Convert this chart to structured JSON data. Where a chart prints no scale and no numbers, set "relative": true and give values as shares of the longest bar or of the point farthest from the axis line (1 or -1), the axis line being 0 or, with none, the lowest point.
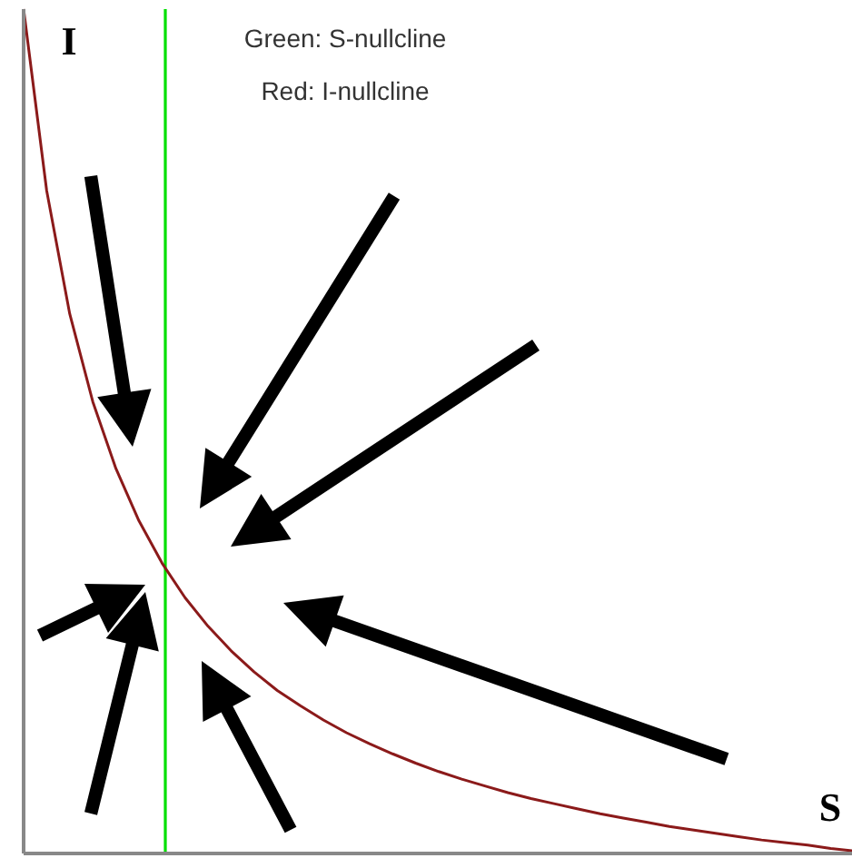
{
  "chart_data": {
    "type": "line",
    "relative": true,
    "xlabel": "S",
    "ylabel": "I",
    "annotations": [
      "Green: S-nullcline",
      "Red: I-nullcline"
    ],
    "categories": [
      null,
      null,
      null,
      null,
      null,
      null,
      null,
      null,
      null,
      null,
      null,
      null,
      null,
      null,
      null,
      null,
      null,
      null,
      null,
      null,
      null,
      null,
      null,
      null,
      null,
      null,
      null,
      null,
      null,
      null,
      null,
      null,
      null,
      null,
      null,
      null,
      null
    ],
    "line_style": "solid",
    "series": [
      {
        "color": "#8b1a1a",
        "values": [
          1,
          0.785,
          0.639,
          0.535,
          0.456,
          0.394,
          0.344,
          0.303,
          0.269,
          0.24,
          0.215,
          0.193,
          0.175,
          0.158,
          0.143,
          0.13,
          0.118,
          0.107,
          0.097,
          0.088,
          0.08,
          0.072,
          0.065,
          0.059,
          0.053,
          0.047,
          0.042,
          0.037,
          0.032,
          0.028,
          0.024,
          0.02,
          0.016,
          0.013,
          0.01,
          0.006,
          0.003
        ]
      }
    ]
  }
}
